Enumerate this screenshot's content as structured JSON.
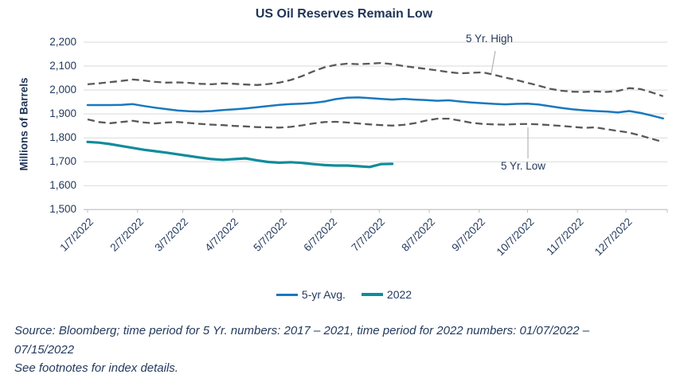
{
  "chart_data": {
    "type": "line",
    "title": "US Oil Reserves Remain Low",
    "ylabel": "Millions of Barrels",
    "ylim": [
      1500,
      2200
    ],
    "ytick_step": 100,
    "ytick_labels": [
      "2,200",
      "2,100",
      "2,000",
      "1,900",
      "1,800",
      "1,700",
      "1,600",
      "1,500"
    ],
    "xtick_labels": [
      "1/7/2022",
      "2/7/2022",
      "3/7/2022",
      "4/7/2022",
      "5/7/2022",
      "6/7/2022",
      "7/7/2022",
      "8/7/2022",
      "9/7/2022",
      "10/7/2022",
      "11/7/2022",
      "12/7/2022"
    ],
    "x_frequency": "weekly starting 1/7/2022",
    "grid": "horizontal",
    "legend_position": "bottom",
    "legend": [
      "5-yr Avg.",
      "2022"
    ],
    "annotations": [
      {
        "label": "5 Yr. High"
      },
      {
        "label": "5 Yr. Low"
      }
    ],
    "series": [
      {
        "id": "five-yr-high",
        "name": "5 Yr. High",
        "style": "dashed",
        "color": "#595959",
        "values": [
          2024,
          2028,
          2033,
          2038,
          2044,
          2040,
          2034,
          2031,
          2032,
          2030,
          2026,
          2024,
          2028,
          2026,
          2023,
          2021,
          2025,
          2031,
          2042,
          2058,
          2078,
          2095,
          2105,
          2110,
          2108,
          2110,
          2113,
          2108,
          2100,
          2094,
          2088,
          2082,
          2075,
          2070,
          2072,
          2074,
          2064,
          2052,
          2042,
          2030,
          2018,
          2005,
          1997,
          1993,
          1992,
          1994,
          1992,
          1996,
          2008,
          2004,
          1990,
          1974
        ]
      },
      {
        "id": "five-yr-avg",
        "name": "5-yr Avg.",
        "style": "solid",
        "color": "#1878BE",
        "values": [
          1937,
          1937,
          1937,
          1938,
          1941,
          1933,
          1926,
          1920,
          1914,
          1911,
          1910,
          1912,
          1916,
          1919,
          1923,
          1928,
          1933,
          1938,
          1941,
          1943,
          1946,
          1952,
          1962,
          1968,
          1969,
          1966,
          1963,
          1960,
          1963,
          1960,
          1958,
          1955,
          1957,
          1952,
          1948,
          1945,
          1942,
          1940,
          1942,
          1943,
          1939,
          1932,
          1925,
          1919,
          1915,
          1912,
          1910,
          1906,
          1912,
          1904,
          1893,
          1881
        ]
      },
      {
        "id": "five-yr-low",
        "name": "5 Yr. Low",
        "style": "dashed",
        "color": "#595959",
        "values": [
          1877,
          1866,
          1861,
          1866,
          1871,
          1864,
          1860,
          1864,
          1866,
          1862,
          1858,
          1855,
          1853,
          1850,
          1848,
          1845,
          1844,
          1843,
          1846,
          1852,
          1860,
          1866,
          1867,
          1864,
          1860,
          1856,
          1853,
          1851,
          1854,
          1861,
          1872,
          1880,
          1880,
          1872,
          1863,
          1858,
          1856,
          1855,
          1857,
          1858,
          1856,
          1853,
          1850,
          1846,
          1842,
          1844,
          1836,
          1829,
          1822,
          1810,
          1796,
          1783
        ]
      },
      {
        "id": "series-2022",
        "name": "2022",
        "style": "solid",
        "color": "#0F8C9B",
        "values": [
          1783,
          1780,
          1774,
          1766,
          1758,
          1750,
          1744,
          1738,
          1731,
          1724,
          1717,
          1711,
          1708,
          1711,
          1714,
          1706,
          1699,
          1696,
          1698,
          1695,
          1690,
          1686,
          1684,
          1684,
          1681,
          1678,
          1690,
          1691
        ]
      }
    ]
  },
  "footnotes": {
    "line1": "Source: Bloomberg; time period for 5 Yr. numbers: 2017 – 2021, time period for 2022 numbers: 01/07/2022 –",
    "line2": "07/15/2022",
    "line3": "See footnotes for index details."
  },
  "colors": {
    "text_navy": "#243A5E",
    "avg_line_blue": "#1878BE",
    "line_2022_teal": "#0F8C9B",
    "dashed_gray": "#595959",
    "gridline_gray": "#D9D9D9",
    "axis_gray": "#BFBFBF"
  }
}
